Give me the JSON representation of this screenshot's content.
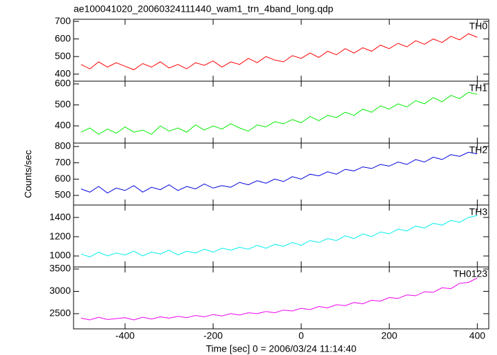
{
  "chart_data": [
    {
      "type": "line",
      "title": "ae100041020_20060324111440_wam1_trn_4band_long.qdp",
      "label": "TH0",
      "color": "#ff0000",
      "x": [
        -500,
        -480,
        -460,
        -440,
        -420,
        -400,
        -380,
        -360,
        -340,
        -320,
        -300,
        -280,
        -260,
        -240,
        -220,
        -200,
        -180,
        -160,
        -140,
        -120,
        -100,
        -80,
        -60,
        -40,
        -20,
        0,
        20,
        40,
        60,
        80,
        100,
        120,
        140,
        160,
        180,
        200,
        220,
        240,
        260,
        280,
        300,
        320,
        340,
        360,
        380,
        400
      ],
      "values": [
        455,
        430,
        470,
        440,
        465,
        445,
        425,
        460,
        440,
        470,
        435,
        455,
        430,
        465,
        450,
        475,
        440,
        470,
        455,
        490,
        465,
        500,
        480,
        470,
        505,
        490,
        520,
        495,
        530,
        510,
        545,
        520,
        550,
        530,
        565,
        545,
        575,
        555,
        590,
        570,
        600,
        580,
        615,
        595,
        630,
        610
      ],
      "ylim": [
        360,
        712
      ],
      "yticks": [
        400,
        500,
        600,
        700
      ],
      "xlim": [
        -517,
        426
      ]
    },
    {
      "type": "line",
      "label": "TH1",
      "color": "#00ee00",
      "x": [
        -500,
        -480,
        -460,
        -440,
        -420,
        -400,
        -380,
        -360,
        -340,
        -320,
        -300,
        -280,
        -260,
        -240,
        -220,
        -200,
        -180,
        -160,
        -140,
        -120,
        -100,
        -80,
        -60,
        -40,
        -20,
        0,
        20,
        40,
        60,
        80,
        100,
        120,
        140,
        160,
        180,
        200,
        220,
        240,
        260,
        280,
        300,
        320,
        340,
        360,
        380,
        400
      ],
      "values": [
        370,
        390,
        360,
        385,
        365,
        395,
        370,
        380,
        360,
        400,
        375,
        390,
        370,
        405,
        380,
        400,
        385,
        410,
        390,
        375,
        405,
        395,
        420,
        410,
        430,
        415,
        445,
        425,
        450,
        440,
        465,
        450,
        480,
        465,
        495,
        480,
        505,
        490,
        520,
        505,
        535,
        515,
        545,
        530,
        560,
        550
      ],
      "ylim": [
        318,
        613
      ],
      "yticks": [
        400,
        500,
        600
      ],
      "xlim": [
        -517,
        426
      ]
    },
    {
      "type": "line",
      "label": "TH2",
      "color": "#0000dd",
      "ylabel": "Counts/sec",
      "x": [
        -500,
        -480,
        -460,
        -440,
        -420,
        -400,
        -380,
        -360,
        -340,
        -320,
        -300,
        -280,
        -260,
        -240,
        -220,
        -200,
        -180,
        -160,
        -140,
        -120,
        -100,
        -80,
        -60,
        -40,
        -20,
        0,
        20,
        40,
        60,
        80,
        100,
        120,
        140,
        160,
        180,
        200,
        220,
        240,
        260,
        280,
        300,
        320,
        340,
        360,
        380,
        400
      ],
      "values": [
        540,
        520,
        555,
        515,
        545,
        530,
        560,
        520,
        550,
        535,
        565,
        530,
        555,
        540,
        570,
        545,
        560,
        550,
        580,
        565,
        590,
        575,
        600,
        585,
        615,
        600,
        630,
        620,
        645,
        630,
        660,
        650,
        675,
        665,
        690,
        680,
        705,
        690,
        720,
        705,
        735,
        720,
        750,
        740,
        765,
        755
      ],
      "ylim": [
        441,
        821
      ],
      "yticks": [
        500,
        600,
        700,
        800
      ],
      "xlim": [
        -517,
        426
      ]
    },
    {
      "type": "line",
      "label": "TH3",
      "color": "#00eeee",
      "x": [
        -500,
        -480,
        -460,
        -440,
        -420,
        -400,
        -380,
        -360,
        -340,
        -320,
        -300,
        -280,
        -260,
        -240,
        -220,
        -200,
        -180,
        -160,
        -140,
        -120,
        -100,
        -80,
        -60,
        -40,
        -20,
        0,
        20,
        40,
        60,
        80,
        100,
        120,
        140,
        160,
        180,
        200,
        220,
        240,
        260,
        280,
        300,
        320,
        340,
        360,
        380,
        400
      ],
      "values": [
        1020,
        990,
        1040,
        1000,
        1030,
        1010,
        1050,
        1000,
        1040,
        1020,
        1060,
        1010,
        1050,
        1030,
        1070,
        1040,
        1080,
        1060,
        1090,
        1070,
        1110,
        1080,
        1120,
        1100,
        1140,
        1110,
        1160,
        1140,
        1180,
        1160,
        1210,
        1180,
        1230,
        1200,
        1250,
        1230,
        1280,
        1260,
        1310,
        1290,
        1340,
        1320,
        1370,
        1350,
        1400,
        1420
      ],
      "ylim": [
        886,
        1529
      ],
      "yticks": [
        1000,
        1200,
        1400
      ],
      "xlim": [
        -517,
        426
      ]
    },
    {
      "type": "line",
      "label": "TH0123",
      "color": "#ee00ee",
      "xlabel": "Time [sec] 0 = 2006/03/24 11:14:40",
      "x": [
        -500,
        -480,
        -460,
        -440,
        -420,
        -400,
        -380,
        -360,
        -340,
        -320,
        -300,
        -280,
        -260,
        -240,
        -220,
        -200,
        -180,
        -160,
        -140,
        -120,
        -100,
        -80,
        -60,
        -40,
        -20,
        0,
        20,
        40,
        60,
        80,
        100,
        120,
        140,
        160,
        180,
        200,
        220,
        240,
        260,
        280,
        300,
        320,
        340,
        360,
        380,
        400
      ],
      "values": [
        2400,
        2360,
        2420,
        2370,
        2390,
        2410,
        2360,
        2420,
        2380,
        2430,
        2400,
        2440,
        2410,
        2460,
        2430,
        2480,
        2450,
        2500,
        2470,
        2520,
        2500,
        2550,
        2520,
        2580,
        2560,
        2620,
        2590,
        2660,
        2630,
        2700,
        2680,
        2750,
        2720,
        2800,
        2780,
        2860,
        2840,
        2920,
        2900,
        2990,
        2980,
        3080,
        3060,
        3180,
        3200,
        3300
      ],
      "ylim": [
        2160,
        3546
      ],
      "yticks": [
        2500,
        3000,
        3500
      ],
      "xlim": [
        -517,
        426
      ],
      "xticks": [
        -400,
        -200,
        0,
        200,
        400
      ]
    }
  ]
}
